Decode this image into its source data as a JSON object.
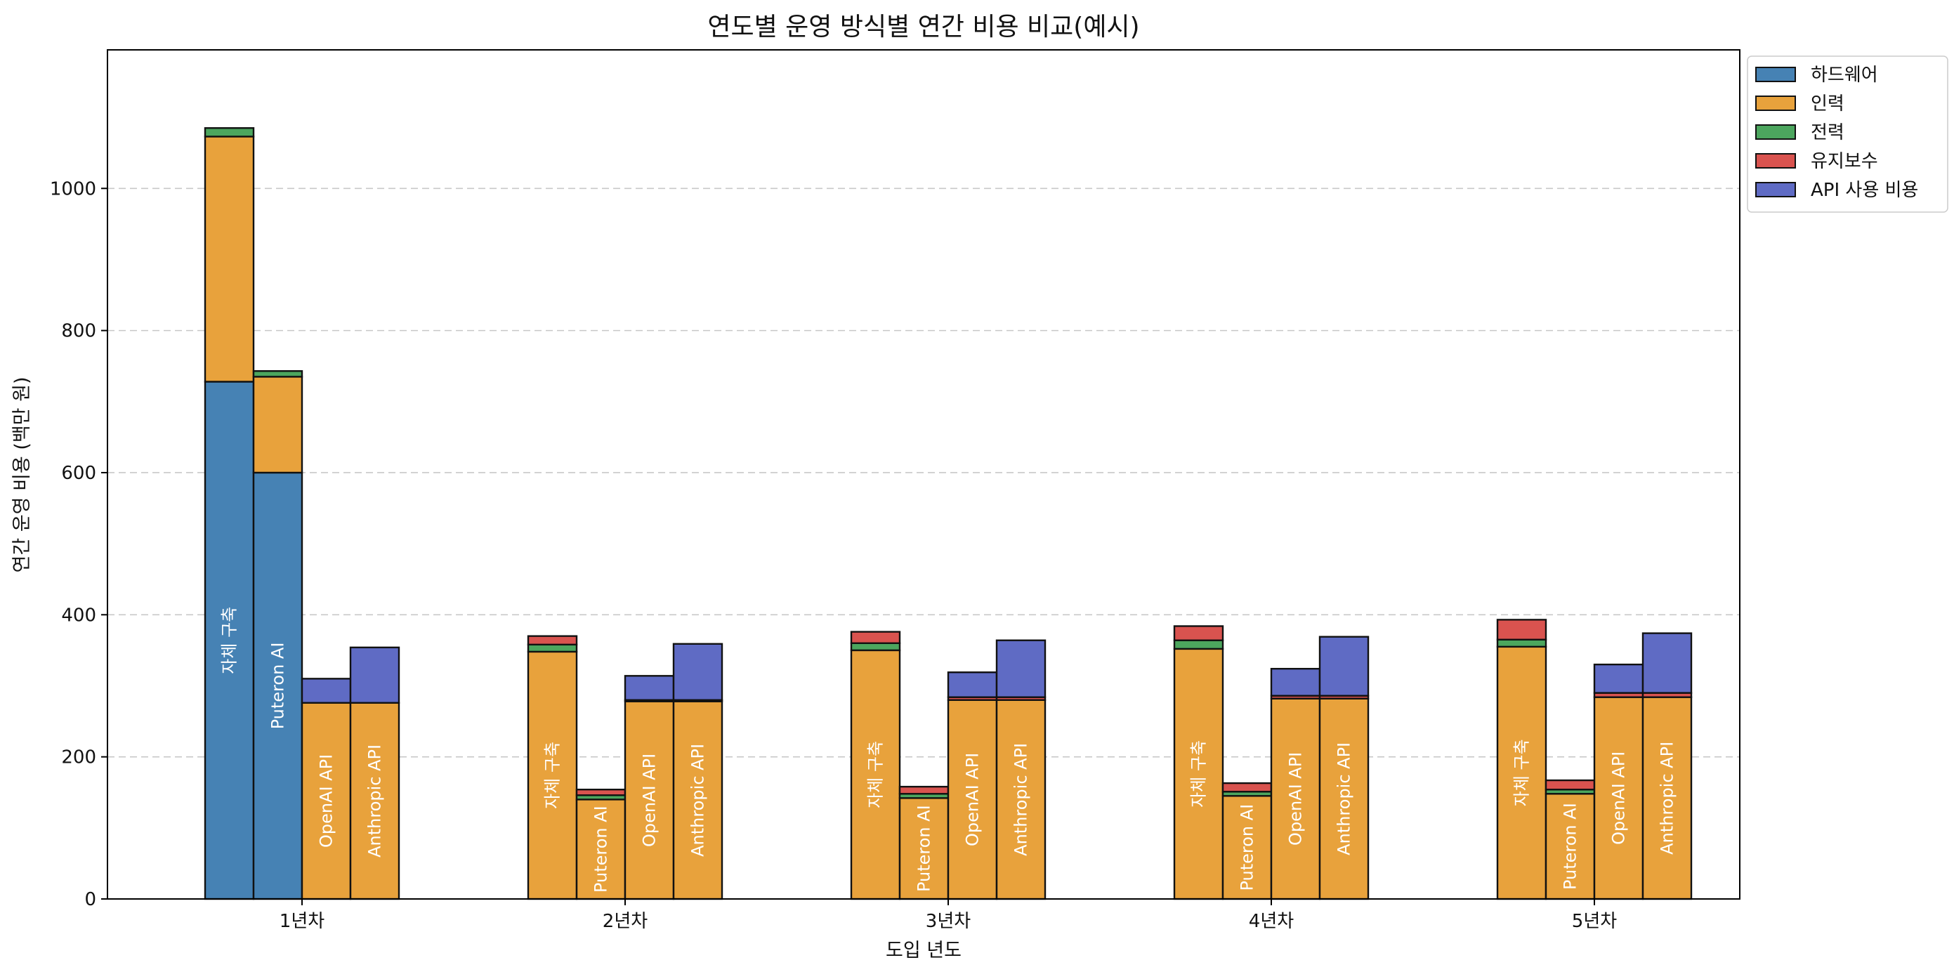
{
  "chart_data": {
    "type": "bar",
    "stacked": true,
    "grouped": true,
    "title": "연도별 운영 방식별 연간 비용 비교(예시)",
    "xlabel": "도입 년도",
    "ylabel": "연간 운영 비용 (백만 원)",
    "ylim": [
      0,
      1195
    ],
    "yticks": [
      0,
      200,
      400,
      600,
      800,
      1000
    ],
    "grid": "y, dashed",
    "legend_position": "outside top-right",
    "categories": [
      "1년차",
      "2년차",
      "3년차",
      "4년차",
      "5년차"
    ],
    "groups": [
      "자체 구축",
      "Puteron AI",
      "OpenAI API",
      "Anthropic API"
    ],
    "components": [
      {
        "name": "하드웨어",
        "color": "#4682B4"
      },
      {
        "name": "인력",
        "color": "#E8A23C"
      },
      {
        "name": "전력",
        "color": "#4CA65E"
      },
      {
        "name": "유지보수",
        "color": "#D9534F"
      },
      {
        "name": "API 사용 비용",
        "color": "#5F6BC4"
      }
    ],
    "series": [
      {
        "group": "자체 구축",
        "stacks": [
          [
            728,
            345,
            12,
            0,
            0
          ],
          [
            0,
            348,
            10,
            12,
            0
          ],
          [
            0,
            350,
            10,
            16,
            0
          ],
          [
            0,
            352,
            12,
            20,
            0
          ],
          [
            0,
            355,
            10,
            28,
            0
          ]
        ]
      },
      {
        "group": "Puteron AI",
        "stacks": [
          [
            600,
            135,
            8,
            0,
            0
          ],
          [
            0,
            140,
            6,
            8,
            0
          ],
          [
            0,
            142,
            6,
            10,
            0
          ],
          [
            0,
            145,
            6,
            12,
            0
          ],
          [
            0,
            148,
            6,
            13,
            0
          ]
        ]
      },
      {
        "group": "OpenAI API",
        "stacks": [
          [
            0,
            276,
            0,
            0,
            34
          ],
          [
            0,
            278,
            0,
            2,
            34
          ],
          [
            0,
            280,
            0,
            4,
            35
          ],
          [
            0,
            282,
            0,
            4,
            38
          ],
          [
            0,
            284,
            0,
            6,
            40
          ]
        ]
      },
      {
        "group": "Anthropic API",
        "stacks": [
          [
            0,
            276,
            0,
            0,
            78
          ],
          [
            0,
            278,
            0,
            2,
            79
          ],
          [
            0,
            280,
            0,
            4,
            80
          ],
          [
            0,
            282,
            0,
            4,
            83
          ],
          [
            0,
            284,
            0,
            6,
            84
          ]
        ]
      }
    ]
  }
}
